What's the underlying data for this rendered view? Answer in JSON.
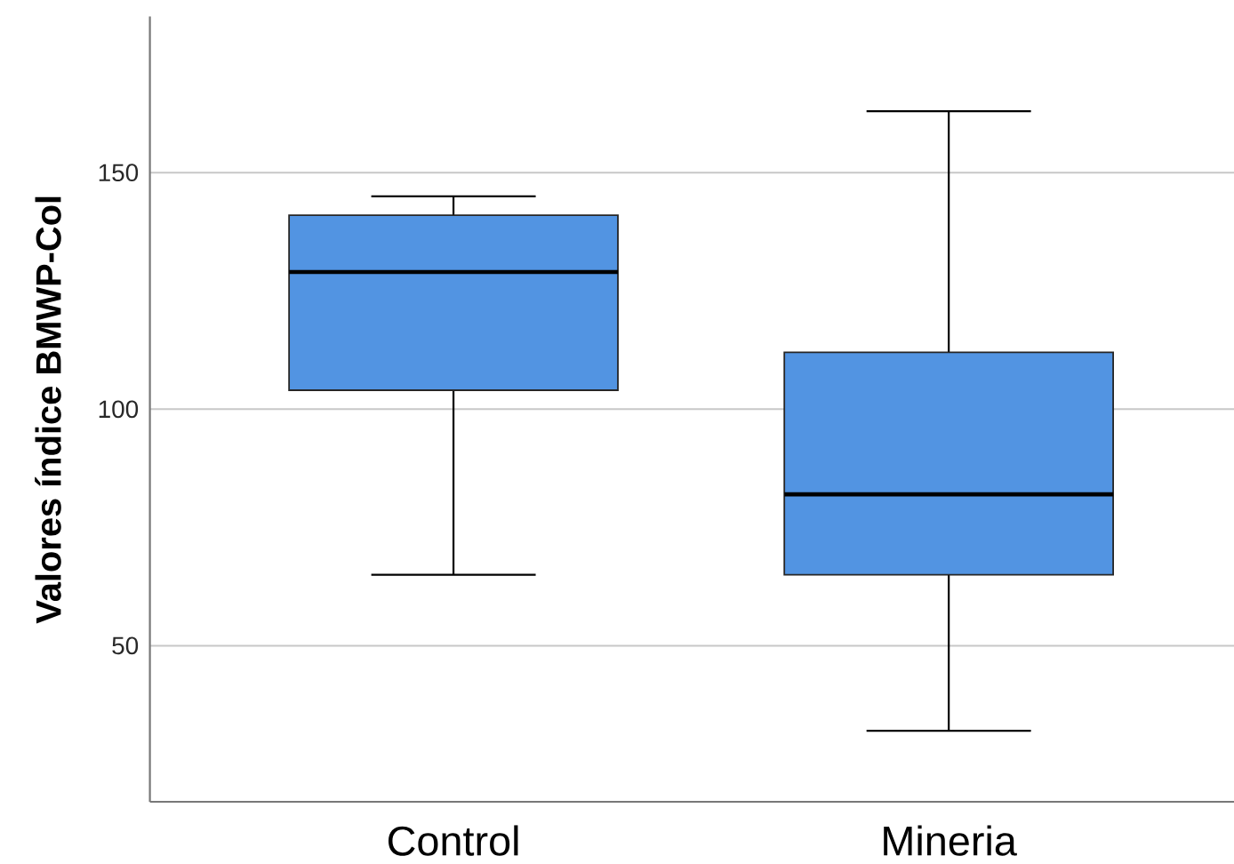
{
  "chart_data": {
    "type": "box",
    "ylabel": "Valores índice BMWP-Col",
    "categories": [
      "Control",
      "Mineria"
    ],
    "boxes": [
      {
        "low": 65,
        "q1": 104,
        "median": 129,
        "q3": 141,
        "high": 145
      },
      {
        "low": 32,
        "q1": 65,
        "median": 82,
        "q3": 112,
        "high": 163
      }
    ],
    "color": "#5294e2",
    "ylim": [
      17,
      183
    ],
    "yticks": [
      50,
      100,
      150
    ],
    "grid": "y"
  }
}
